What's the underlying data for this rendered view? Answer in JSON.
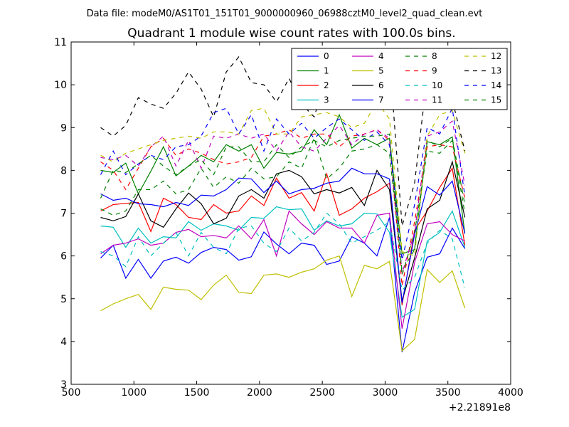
{
  "suptitle": "Data file: modeM0/AS1T01_151T01_9000000960_06988cztM0_level2_quad_clean.evt",
  "chart_data": {
    "type": "line",
    "title": "Quadrant 1 module wise count rates with 100.0s bins.",
    "xlabel": "",
    "ylabel": "",
    "x_offset_label": "+2.21891e8",
    "xlim": [
      500,
      4000
    ],
    "ylim": [
      3,
      11
    ],
    "xticks": [
      500,
      1000,
      1500,
      2000,
      2500,
      3000,
      3500,
      4000
    ],
    "yticks": [
      3,
      4,
      5,
      6,
      7,
      8,
      9,
      10,
      11
    ],
    "grid": false,
    "legend_position": "top-right",
    "x": [
      735,
      835,
      935,
      1035,
      1135,
      1235,
      1335,
      1435,
      1535,
      1635,
      1735,
      1835,
      1935,
      2035,
      2135,
      2235,
      2335,
      2435,
      2535,
      2635,
      2735,
      2835,
      2935,
      3035,
      3135,
      3235,
      3335,
      3435,
      3535,
      3635
    ],
    "series": [
      {
        "name": "0",
        "color": "#0000ff",
        "dash": "solid",
        "values": [
          5.95,
          6.25,
          5.48,
          5.92,
          5.48,
          5.88,
          5.97,
          5.83,
          6.08,
          6.2,
          6.15,
          5.9,
          5.98,
          6.56,
          6.28,
          6.05,
          6.3,
          6.25,
          5.8,
          5.88,
          6.45,
          6.3,
          6.0,
          6.9,
          3.75,
          5.15,
          5.97,
          6.05,
          6.65,
          6.17
        ]
      },
      {
        "name": "1",
        "color": "#008000",
        "dash": "solid",
        "values": [
          8.0,
          7.95,
          8.17,
          7.45,
          7.98,
          8.55,
          7.87,
          8.1,
          8.35,
          8.2,
          8.6,
          8.45,
          8.6,
          8.05,
          8.42,
          8.38,
          8.45,
          8.95,
          8.6,
          9.3,
          8.52,
          8.75,
          8.6,
          8.75,
          6.05,
          6.15,
          8.67,
          8.6,
          8.78,
          6.52
        ]
      },
      {
        "name": "2",
        "color": "#ff0000",
        "dash": "solid",
        "values": [
          7.05,
          7.2,
          7.23,
          7.25,
          6.57,
          7.35,
          7.2,
          6.9,
          6.85,
          7.2,
          7.0,
          7.05,
          7.4,
          7.18,
          7.82,
          7.35,
          7.48,
          7.05,
          7.92,
          6.95,
          7.1,
          7.35,
          7.5,
          7.7,
          4.85,
          6.6,
          7.05,
          7.6,
          8.05,
          6.25
        ]
      },
      {
        "name": "3",
        "color": "#00bfbf",
        "dash": "solid",
        "values": [
          6.7,
          6.67,
          6.2,
          6.65,
          6.3,
          6.45,
          6.42,
          6.8,
          6.6,
          6.75,
          6.7,
          6.6,
          6.9,
          6.88,
          7.15,
          7.08,
          7.1,
          6.6,
          6.82,
          6.7,
          6.75,
          7.0,
          6.98,
          6.55,
          4.57,
          4.75,
          6.35,
          6.55,
          7.05,
          6.2
        ]
      },
      {
        "name": "4",
        "color": "#bf00bf",
        "dash": "solid",
        "values": [
          6.05,
          6.25,
          6.3,
          6.4,
          6.25,
          6.3,
          6.55,
          6.62,
          6.45,
          6.48,
          6.42,
          6.7,
          6.4,
          6.85,
          6.0,
          7.05,
          6.75,
          6.5,
          6.8,
          6.65,
          6.65,
          6.3,
          6.95,
          7.0,
          4.3,
          5.85,
          6.75,
          6.8,
          6.5,
          6.35
        ]
      },
      {
        "name": "5",
        "color": "#bfbf00",
        "dash": "solid",
        "values": [
          4.72,
          4.88,
          5.0,
          5.1,
          4.75,
          5.27,
          5.22,
          5.2,
          4.98,
          5.32,
          5.55,
          5.15,
          5.12,
          5.55,
          5.58,
          5.5,
          5.62,
          5.7,
          5.9,
          6.0,
          5.05,
          5.78,
          5.7,
          5.87,
          3.78,
          4.05,
          5.68,
          5.38,
          5.65,
          4.78
        ]
      },
      {
        "name": "6",
        "color": "#000000",
        "dash": "solid",
        "values": [
          6.9,
          6.82,
          6.92,
          7.45,
          6.82,
          6.67,
          7.1,
          7.47,
          7.22,
          6.75,
          6.88,
          7.4,
          7.55,
          7.35,
          7.92,
          8.0,
          7.85,
          7.45,
          7.55,
          7.47,
          7.6,
          7.18,
          8.0,
          7.55,
          4.95,
          5.95,
          7.1,
          7.3,
          8.2,
          6.9
        ]
      },
      {
        "name": "7",
        "color": "#0000ff",
        "dash": "solid",
        "values": [
          7.45,
          7.3,
          7.35,
          7.22,
          7.2,
          7.15,
          7.25,
          7.18,
          7.42,
          7.4,
          7.55,
          7.82,
          7.8,
          7.48,
          7.75,
          7.45,
          7.55,
          7.58,
          7.7,
          7.75,
          8.05,
          7.92,
          7.92,
          7.8,
          4.9,
          6.5,
          7.62,
          7.42,
          7.75,
          6.52
        ]
      },
      {
        "name": "8",
        "color": "#008000",
        "dash": "dashed",
        "values": [
          7.1,
          6.95,
          7.05,
          7.55,
          7.55,
          7.75,
          7.45,
          7.55,
          8.05,
          7.6,
          7.85,
          7.7,
          8.05,
          7.8,
          7.85,
          8.2,
          8.05,
          8.75,
          7.8,
          8.05,
          8.45,
          8.5,
          8.6,
          8.4,
          5.65,
          6.15,
          8.7,
          8.55,
          8.75,
          7.2
        ]
      },
      {
        "name": "9",
        "color": "#ff0000",
        "dash": "dashed",
        "values": [
          8.2,
          8.0,
          7.55,
          8.05,
          8.55,
          8.75,
          8.35,
          8.5,
          8.4,
          8.25,
          8.15,
          8.2,
          8.3,
          8.8,
          8.85,
          8.95,
          8.75,
          8.85,
          8.85,
          8.55,
          8.8,
          8.85,
          8.95,
          8.7,
          5.3,
          6.8,
          8.55,
          8.6,
          8.55,
          7.35
        ]
      },
      {
        "name": "10",
        "color": "#00bfbf",
        "dash": "dashed",
        "values": [
          6.1,
          6.0,
          5.75,
          6.45,
          6.0,
          6.3,
          6.55,
          6.0,
          6.55,
          6.2,
          6.05,
          6.65,
          6.7,
          6.3,
          6.1,
          6.65,
          6.35,
          6.55,
          7.0,
          6.75,
          6.3,
          6.45,
          6.6,
          6.8,
          5.2,
          5.5,
          6.3,
          6.6,
          6.4,
          5.25
        ]
      },
      {
        "name": "11",
        "color": "#bf00bf",
        "dash": "dashed",
        "values": [
          8.3,
          8.25,
          8.35,
          8.1,
          8.55,
          8.8,
          8.1,
          8.7,
          8.05,
          8.8,
          8.75,
          8.85,
          8.75,
          8.85,
          8.45,
          8.9,
          8.55,
          8.45,
          8.75,
          9.05,
          8.6,
          8.85,
          8.95,
          8.75,
          5.6,
          6.55,
          8.8,
          8.9,
          9.15,
          7.65
        ]
      },
      {
        "name": "12",
        "color": "#bfbf00",
        "dash": "dashed",
        "values": [
          8.35,
          8.2,
          8.4,
          8.5,
          8.6,
          8.7,
          8.75,
          8.8,
          8.75,
          8.9,
          8.9,
          8.85,
          9.4,
          9.45,
          8.85,
          8.85,
          9.25,
          9.3,
          9.35,
          9.25,
          9.0,
          9.1,
          9.6,
          9.2,
          6.1,
          6.0,
          8.8,
          9.3,
          9.4,
          8.4
        ]
      },
      {
        "name": "13",
        "color": "#000000",
        "dash": "dashed",
        "values": [
          9.0,
          8.8,
          9.05,
          9.7,
          9.55,
          9.45,
          9.8,
          10.3,
          9.9,
          9.25,
          10.3,
          10.65,
          10.05,
          10.0,
          9.6,
          10.15,
          9.55,
          9.25,
          10.2,
          9.95,
          10.4,
          10.3,
          10.5,
          10.65,
          6.7,
          7.7,
          10.2,
          10.1,
          9.65,
          8.45
        ]
      },
      {
        "name": "14",
        "color": "#0000ff",
        "dash": "dashed",
        "values": [
          7.9,
          8.45,
          7.9,
          8.15,
          8.35,
          8.25,
          8.55,
          8.6,
          8.8,
          9.35,
          9.45,
          8.85,
          9.3,
          8.45,
          9.2,
          8.85,
          9.1,
          8.75,
          9.0,
          9.2,
          8.95,
          8.7,
          8.9,
          8.6,
          5.9,
          7.2,
          9.0,
          8.85,
          9.45,
          7.4
        ]
      },
      {
        "name": "15",
        "color": "#008000",
        "dash": "dashed",
        "values": [
          7.35,
          8.0,
          7.95,
          8.15,
          8.35,
          8.1,
          7.9,
          8.1,
          8.25,
          7.9,
          8.55,
          8.55,
          8.2,
          8.2,
          8.6,
          8.3,
          8.55,
          8.7,
          8.55,
          8.7,
          8.75,
          8.8,
          8.8,
          8.85,
          5.55,
          6.55,
          8.45,
          8.4,
          8.7,
          7.0
        ]
      }
    ]
  }
}
